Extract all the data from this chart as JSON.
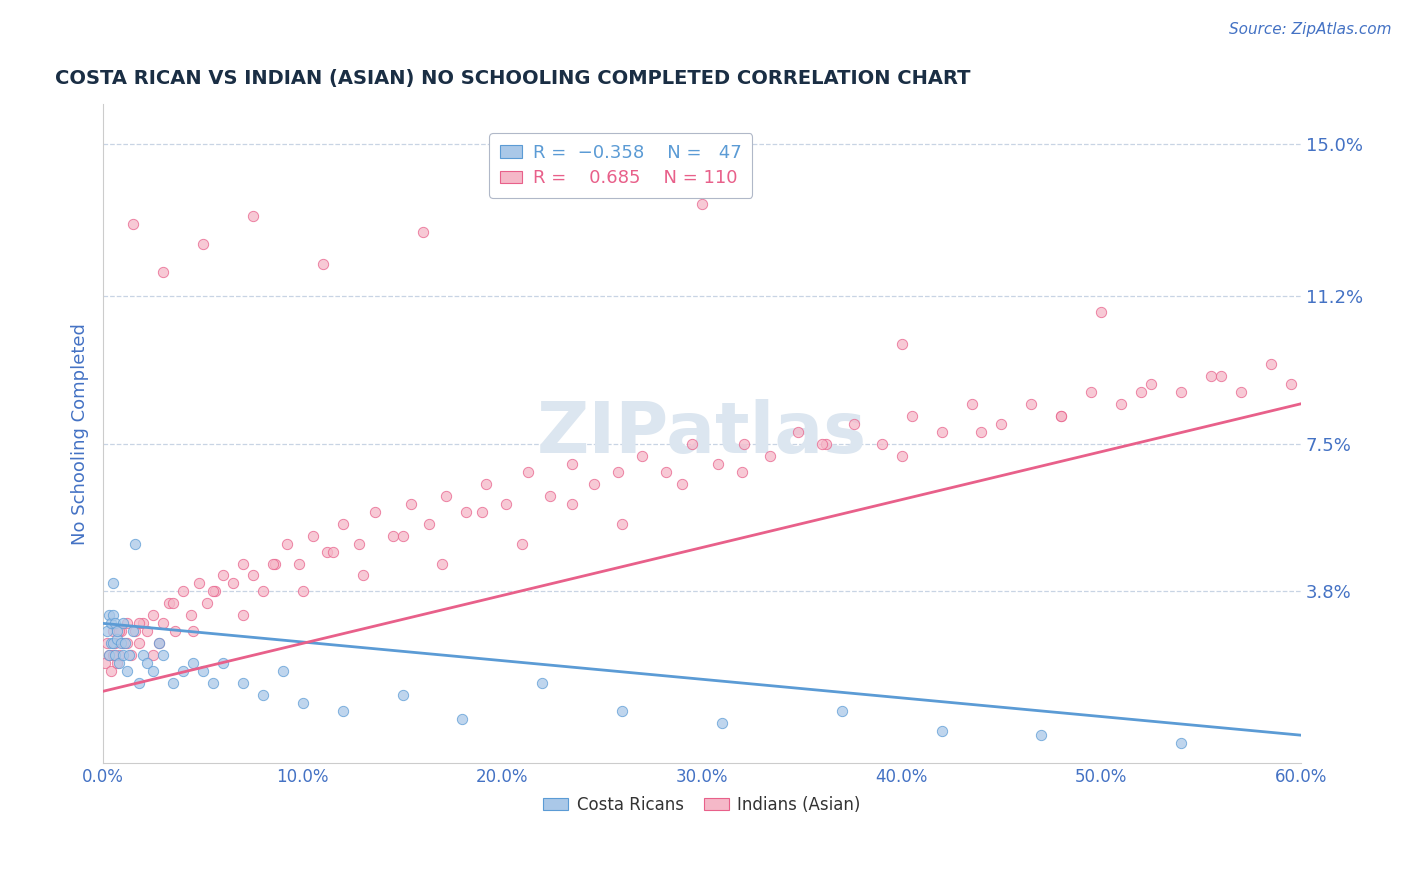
{
  "title": "COSTA RICAN VS INDIAN (ASIAN) NO SCHOOLING COMPLETED CORRELATION CHART",
  "source_text": "Source: ZipAtlas.com",
  "ylabel": "No Schooling Completed",
  "xlim": [
    0.0,
    0.6
  ],
  "ylim": [
    -0.005,
    0.16
  ],
  "yticks": [
    0.038,
    0.075,
    0.112,
    0.15
  ],
  "ytick_labels": [
    "3.8%",
    "7.5%",
    "11.2%",
    "15.0%"
  ],
  "xticks": [
    0.0,
    0.1,
    0.2,
    0.3,
    0.4,
    0.5,
    0.6
  ],
  "xtick_labels": [
    "0.0%",
    "10.0%",
    "20.0%",
    "30.0%",
    "40.0%",
    "50.0%",
    "60.0%"
  ],
  "cr_R": -0.358,
  "cr_N": 47,
  "ind_R": 0.685,
  "ind_N": 110,
  "cr_color": "#aac8e8",
  "ind_color": "#f5b8c8",
  "cr_line_color": "#5b9bd5",
  "ind_line_color": "#e8608a",
  "title_color": "#1a2e44",
  "tick_color": "#4472c4",
  "grid_color": "#c8d4e4",
  "watermark_color": "#dce6f0",
  "background_color": "#ffffff",
  "legend_edge_color": "#b0b8c8",
  "cr_line_start_y": 0.03,
  "cr_line_end_y": 0.002,
  "ind_line_start_y": 0.013,
  "ind_line_end_y": 0.085,
  "cr_x": [
    0.002,
    0.003,
    0.003,
    0.004,
    0.004,
    0.005,
    0.005,
    0.005,
    0.006,
    0.006,
    0.007,
    0.007,
    0.008,
    0.009,
    0.01,
    0.01,
    0.011,
    0.012,
    0.013,
    0.015,
    0.016,
    0.018,
    0.02,
    0.022,
    0.025,
    0.028,
    0.03,
    0.035,
    0.04,
    0.045,
    0.05,
    0.055,
    0.06,
    0.07,
    0.08,
    0.09,
    0.1,
    0.12,
    0.15,
    0.18,
    0.22,
    0.26,
    0.31,
    0.37,
    0.42,
    0.47,
    0.54
  ],
  "cr_y": [
    0.028,
    0.022,
    0.032,
    0.025,
    0.03,
    0.025,
    0.032,
    0.04,
    0.022,
    0.03,
    0.026,
    0.028,
    0.02,
    0.025,
    0.022,
    0.03,
    0.025,
    0.018,
    0.022,
    0.028,
    0.05,
    0.015,
    0.022,
    0.02,
    0.018,
    0.025,
    0.022,
    0.015,
    0.018,
    0.02,
    0.018,
    0.015,
    0.02,
    0.015,
    0.012,
    0.018,
    0.01,
    0.008,
    0.012,
    0.006,
    0.015,
    0.008,
    0.005,
    0.008,
    0.003,
    0.002,
    0.0
  ],
  "ind_x": [
    0.001,
    0.002,
    0.003,
    0.004,
    0.005,
    0.006,
    0.007,
    0.008,
    0.009,
    0.01,
    0.012,
    0.014,
    0.016,
    0.018,
    0.02,
    0.022,
    0.025,
    0.028,
    0.03,
    0.033,
    0.036,
    0.04,
    0.044,
    0.048,
    0.052,
    0.056,
    0.06,
    0.065,
    0.07,
    0.075,
    0.08,
    0.086,
    0.092,
    0.098,
    0.105,
    0.112,
    0.12,
    0.128,
    0.136,
    0.145,
    0.154,
    0.163,
    0.172,
    0.182,
    0.192,
    0.202,
    0.213,
    0.224,
    0.235,
    0.246,
    0.258,
    0.27,
    0.282,
    0.295,
    0.308,
    0.321,
    0.334,
    0.348,
    0.362,
    0.376,
    0.39,
    0.405,
    0.42,
    0.435,
    0.45,
    0.465,
    0.48,
    0.495,
    0.51,
    0.525,
    0.54,
    0.555,
    0.57,
    0.585,
    0.595,
    0.005,
    0.008,
    0.012,
    0.018,
    0.025,
    0.035,
    0.045,
    0.055,
    0.07,
    0.085,
    0.1,
    0.115,
    0.13,
    0.15,
    0.17,
    0.19,
    0.21,
    0.235,
    0.26,
    0.29,
    0.32,
    0.36,
    0.4,
    0.44,
    0.48,
    0.52,
    0.56,
    0.015,
    0.03,
    0.05,
    0.075,
    0.11,
    0.16,
    0.22,
    0.3,
    0.4,
    0.5
  ],
  "ind_y": [
    0.02,
    0.025,
    0.022,
    0.018,
    0.028,
    0.025,
    0.02,
    0.022,
    0.028,
    0.025,
    0.03,
    0.022,
    0.028,
    0.025,
    0.03,
    0.028,
    0.032,
    0.025,
    0.03,
    0.035,
    0.028,
    0.038,
    0.032,
    0.04,
    0.035,
    0.038,
    0.042,
    0.04,
    0.045,
    0.042,
    0.038,
    0.045,
    0.05,
    0.045,
    0.052,
    0.048,
    0.055,
    0.05,
    0.058,
    0.052,
    0.06,
    0.055,
    0.062,
    0.058,
    0.065,
    0.06,
    0.068,
    0.062,
    0.07,
    0.065,
    0.068,
    0.072,
    0.068,
    0.075,
    0.07,
    0.075,
    0.072,
    0.078,
    0.075,
    0.08,
    0.075,
    0.082,
    0.078,
    0.085,
    0.08,
    0.085,
    0.082,
    0.088,
    0.085,
    0.09,
    0.088,
    0.092,
    0.088,
    0.095,
    0.09,
    0.022,
    0.028,
    0.025,
    0.03,
    0.022,
    0.035,
    0.028,
    0.038,
    0.032,
    0.045,
    0.038,
    0.048,
    0.042,
    0.052,
    0.045,
    0.058,
    0.05,
    0.06,
    0.055,
    0.065,
    0.068,
    0.075,
    0.072,
    0.078,
    0.082,
    0.088,
    0.092,
    0.13,
    0.118,
    0.125,
    0.132,
    0.12,
    0.128,
    0.138,
    0.135,
    0.1,
    0.108
  ]
}
